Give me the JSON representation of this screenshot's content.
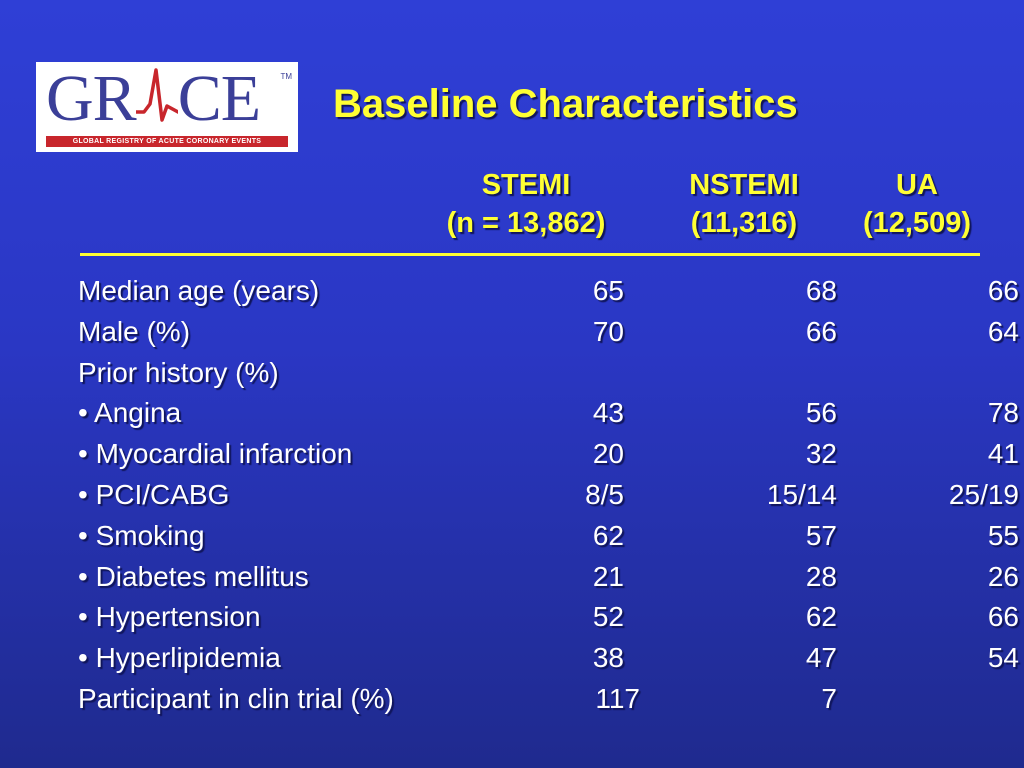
{
  "logo": {
    "word_left": "GR",
    "word_right": "CE",
    "tm": "TM",
    "tagline": "GLOBAL REGISTRY OF ACUTE CORONARY EVENTS",
    "colors": {
      "text": "#3b3f98",
      "band": "#c8262c",
      "pulse": "#c8262c"
    }
  },
  "title": "Baseline Characteristics",
  "columns": [
    {
      "name": "STEMI",
      "n": "(n = 13,862)"
    },
    {
      "name": "NSTEMI",
      "n": "(11,316)"
    },
    {
      "name": "UA",
      "n": "(12,509)"
    }
  ],
  "rows": [
    {
      "label": "Median age (years)",
      "values": [
        "65",
        "68",
        "66"
      ]
    },
    {
      "label": "Male (%)",
      "values": [
        "70",
        "66",
        "64"
      ]
    },
    {
      "label": "Prior history (%)",
      "values": [
        "",
        "",
        ""
      ]
    },
    {
      "label": "• Angina",
      "values": [
        "43",
        "56",
        "78"
      ]
    },
    {
      "label": "• Myocardial infarction",
      "values": [
        "20",
        "32",
        "41"
      ]
    },
    {
      "label": "• PCI/CABG",
      "values": [
        "8/5",
        "15/14",
        "25/19"
      ]
    },
    {
      "label": "• Smoking",
      "values": [
        "62",
        "57",
        "55"
      ]
    },
    {
      "label": "• Diabetes mellitus",
      "values": [
        "21",
        "28",
        "26"
      ]
    },
    {
      "label": "• Hypertension",
      "values": [
        "52",
        "62",
        "66"
      ]
    },
    {
      "label": "• Hyperlipidemia",
      "values": [
        "38",
        "47",
        "54"
      ]
    },
    {
      "label": "Participant in clin trial (%)",
      "values": [
        "117",
        "7",
        ""
      ]
    }
  ],
  "colors": {
    "background": "#2a37c4",
    "heading": "#ffff33",
    "body_text": "#ffffff"
  }
}
